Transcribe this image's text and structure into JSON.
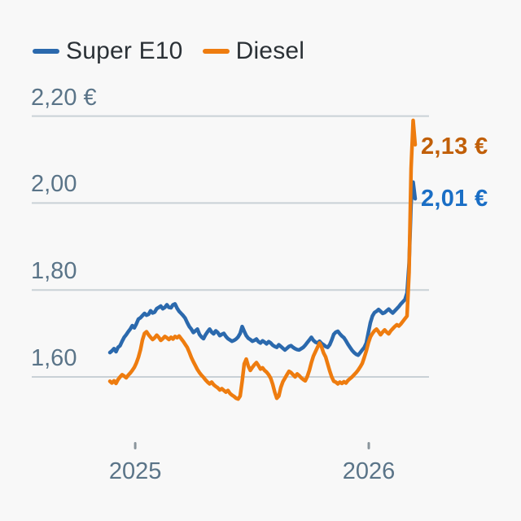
{
  "widget": {
    "background": "#f8f8f8"
  },
  "legend": {
    "position": "top-left",
    "items": [
      {
        "label": "Super E10",
        "color": "#2b69ad"
      },
      {
        "label": "Diesel",
        "color": "#ee7c0f"
      }
    ]
  },
  "colors": {
    "grid": "#c9d1d6",
    "tick": "#8a959c",
    "axis_text": "#5a7488",
    "legend_text": "#2b3136",
    "super_e10_line": "#2b69ad",
    "diesel_line": "#ee7c0f",
    "diesel_label": "#c15f08",
    "super_e10_label": "#1a6ec5"
  },
  "chart_data": {
    "type": "line",
    "currency": "EUR",
    "grid": true,
    "legend_position": "top-left",
    "ylim": [
      1.5,
      2.25
    ],
    "y_axis": {
      "tick_labels": [
        "2,20 €",
        "2,00",
        "1,80",
        "1,60"
      ],
      "tick_values": [
        2.2,
        2.0,
        1.8,
        1.6
      ]
    },
    "x_axis": {
      "ticks": [
        {
          "label": "2025",
          "t": 0.083
        },
        {
          "label": "2026",
          "t": 0.848
        }
      ]
    },
    "end_labels": [
      {
        "series": "Diesel",
        "text": "2,13 €",
        "price": 2.13,
        "color": "#c15f08"
      },
      {
        "series": "Super E10",
        "text": "2,01 €",
        "price": 2.01,
        "color": "#1a6ec5"
      }
    ],
    "series": [
      {
        "name": "Super E10",
        "color": "#2b69ad",
        "last_value": 2.01,
        "values": [
          1.656,
          1.66,
          1.665,
          1.658,
          1.668,
          1.672,
          1.682,
          1.691,
          1.697,
          1.704,
          1.71,
          1.718,
          1.713,
          1.722,
          1.733,
          1.736,
          1.741,
          1.746,
          1.742,
          1.744,
          1.752,
          1.747,
          1.749,
          1.757,
          1.76,
          1.763,
          1.757,
          1.76,
          1.766,
          1.76,
          1.759,
          1.766,
          1.768,
          1.758,
          1.751,
          1.746,
          1.741,
          1.735,
          1.725,
          1.716,
          1.71,
          1.702,
          1.706,
          1.71,
          1.698,
          1.692,
          1.688,
          1.697,
          1.704,
          1.71,
          1.703,
          1.699,
          1.706,
          1.702,
          1.695,
          1.698,
          1.7,
          1.693,
          1.688,
          1.685,
          1.682,
          1.684,
          1.687,
          1.692,
          1.7,
          1.716,
          1.705,
          1.695,
          1.689,
          1.686,
          1.682,
          1.684,
          1.687,
          1.681,
          1.678,
          1.683,
          1.68,
          1.676,
          1.681,
          1.678,
          1.673,
          1.67,
          1.668,
          1.674,
          1.67,
          1.666,
          1.662,
          1.666,
          1.67,
          1.672,
          1.668,
          1.665,
          1.663,
          1.662,
          1.665,
          1.668,
          1.673,
          1.679,
          1.685,
          1.691,
          1.684,
          1.68,
          1.678,
          1.682,
          1.677,
          1.674,
          1.67,
          1.668,
          1.674,
          1.685,
          1.698,
          1.703,
          1.705,
          1.699,
          1.694,
          1.69,
          1.683,
          1.675,
          1.668,
          1.661,
          1.656,
          1.652,
          1.65,
          1.656,
          1.662,
          1.668,
          1.678,
          1.702,
          1.725,
          1.74,
          1.748,
          1.751,
          1.755,
          1.751,
          1.746,
          1.748,
          1.752,
          1.756,
          1.751,
          1.747,
          1.752,
          1.757,
          1.762,
          1.768,
          1.773,
          1.778,
          1.793,
          1.86,
          2.0,
          2.048,
          2.01
        ]
      },
      {
        "name": "Diesel",
        "color": "#ee7c0f",
        "last_value": 2.13,
        "values": [
          1.59,
          1.586,
          1.591,
          1.585,
          1.594,
          1.6,
          1.605,
          1.602,
          1.598,
          1.604,
          1.609,
          1.615,
          1.622,
          1.632,
          1.645,
          1.662,
          1.685,
          1.7,
          1.704,
          1.697,
          1.691,
          1.686,
          1.69,
          1.696,
          1.691,
          1.684,
          1.688,
          1.693,
          1.69,
          1.686,
          1.691,
          1.687,
          1.693,
          1.69,
          1.694,
          1.688,
          1.682,
          1.675,
          1.668,
          1.657,
          1.645,
          1.635,
          1.626,
          1.617,
          1.61,
          1.604,
          1.599,
          1.593,
          1.588,
          1.584,
          1.588,
          1.582,
          1.578,
          1.575,
          1.57,
          1.573,
          1.569,
          1.565,
          1.569,
          1.562,
          1.558,
          1.555,
          1.551,
          1.549,
          1.556,
          1.59,
          1.63,
          1.641,
          1.625,
          1.615,
          1.622,
          1.628,
          1.633,
          1.626,
          1.618,
          1.621,
          1.615,
          1.611,
          1.605,
          1.597,
          1.583,
          1.565,
          1.551,
          1.556,
          1.576,
          1.589,
          1.597,
          1.605,
          1.613,
          1.61,
          1.605,
          1.6,
          1.607,
          1.603,
          1.598,
          1.594,
          1.591,
          1.601,
          1.615,
          1.633,
          1.648,
          1.658,
          1.668,
          1.678,
          1.669,
          1.655,
          1.646,
          1.63,
          1.614,
          1.6,
          1.59,
          1.588,
          1.584,
          1.588,
          1.585,
          1.589,
          1.586,
          1.592,
          1.596,
          1.6,
          1.605,
          1.61,
          1.616,
          1.623,
          1.631,
          1.645,
          1.66,
          1.678,
          1.692,
          1.7,
          1.706,
          1.71,
          1.704,
          1.697,
          1.703,
          1.708,
          1.703,
          1.699,
          1.706,
          1.711,
          1.716,
          1.72,
          1.717,
          1.722,
          1.728,
          1.734,
          1.74,
          1.84,
          2.08,
          2.19,
          2.134
        ]
      }
    ]
  }
}
